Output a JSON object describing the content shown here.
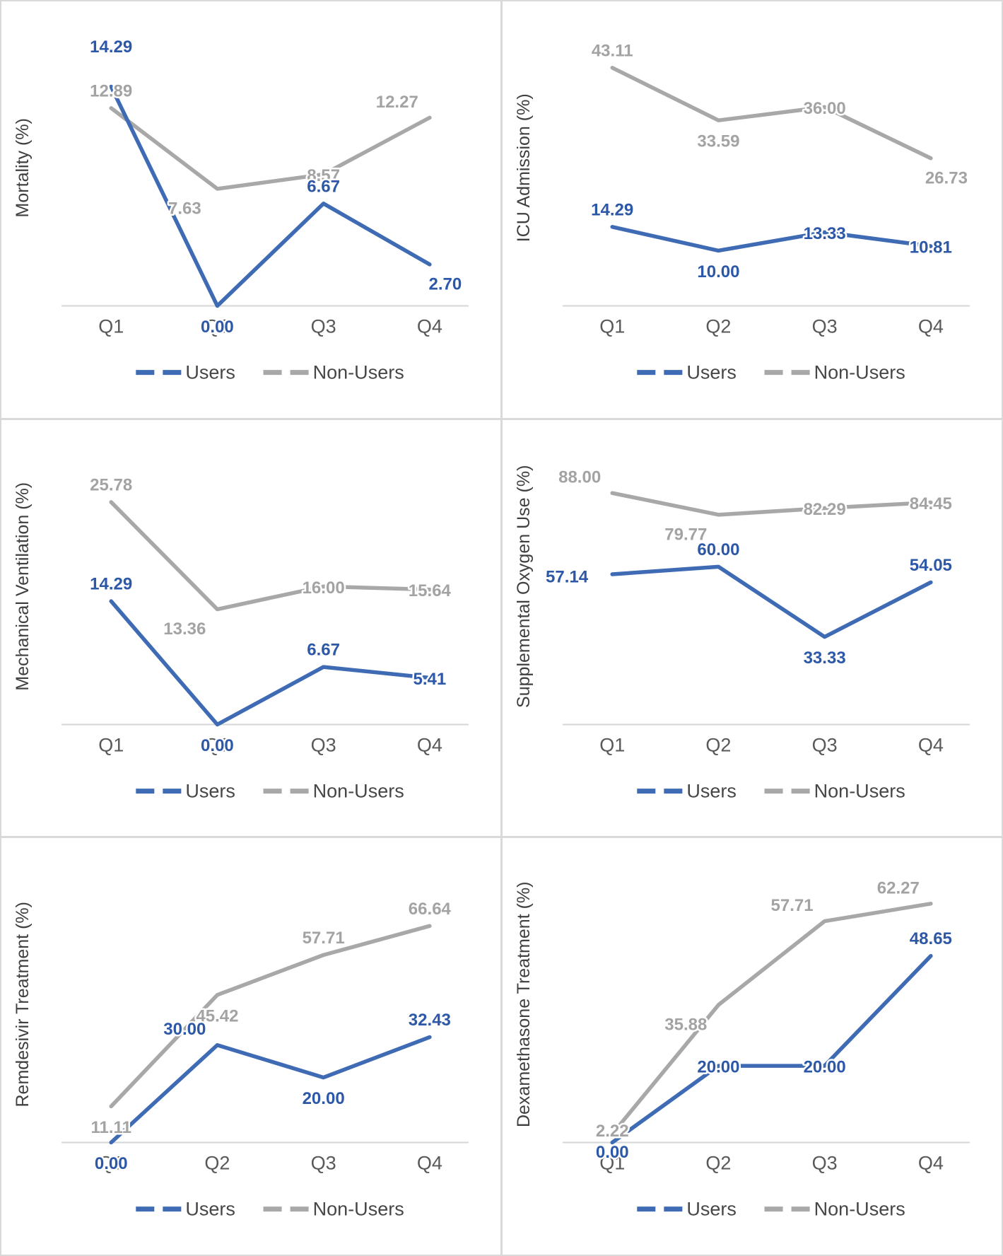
{
  "page": {
    "background": "#ffffff",
    "divider_color": "#d9d9d9"
  },
  "colors": {
    "users_line": "#3e6bb4",
    "users_label": "#2d58a8",
    "nonusers_line": "#a8a8a8",
    "nonusers_label": "#a3a3a3",
    "axis_line": "#d6d6d6",
    "tick_label": "#595959",
    "axis_title": "#404040",
    "legend_text": "#474747"
  },
  "legend": {
    "users_label": "Users",
    "nonusers_label": "Non-Users",
    "position": "bottom"
  },
  "chart_data": [
    {
      "type": "line",
      "ylabel": "Mortality (%)",
      "categories": [
        "Q1",
        "Q2",
        "Q3",
        "Q4"
      ],
      "ylim": [
        0,
        18
      ],
      "grid": false,
      "series": [
        {
          "name": "Non-Users",
          "color_key": "nonusers",
          "values": [
            12.89,
            7.63,
            8.57,
            12.27
          ],
          "label_pos": [
            "a",
            "bl",
            "c",
            "al"
          ]
        },
        {
          "name": "Users",
          "color_key": "users",
          "values": [
            14.29,
            0.0,
            6.67,
            2.7
          ],
          "label_pos": [
            "a2",
            "b",
            "a",
            "br"
          ]
        }
      ]
    },
    {
      "type": "line",
      "ylabel": "ICU Admission (%)",
      "categories": [
        "Q1",
        "Q2",
        "Q3",
        "Q4"
      ],
      "ylim": [
        0,
        50
      ],
      "grid": false,
      "series": [
        {
          "name": "Non-Users",
          "color_key": "nonusers",
          "values": [
            43.11,
            33.59,
            36.0,
            26.73
          ],
          "label_pos": [
            "a",
            "b",
            "c",
            "br"
          ]
        },
        {
          "name": "Users",
          "color_key": "users",
          "values": [
            14.29,
            10.0,
            13.33,
            10.81
          ],
          "label_pos": [
            "a",
            "b",
            "c",
            "c"
          ]
        }
      ]
    },
    {
      "type": "line",
      "ylabel": "Mechanical Ventilation (%)",
      "categories": [
        "Q1",
        "Q2",
        "Q3",
        "Q4"
      ],
      "ylim": [
        0,
        32
      ],
      "grid": false,
      "series": [
        {
          "name": "Non-Users",
          "color_key": "nonusers",
          "values": [
            25.78,
            13.36,
            16.0,
            15.64
          ],
          "label_pos": [
            "a",
            "bl",
            "c",
            "c"
          ]
        },
        {
          "name": "Users",
          "color_key": "users",
          "values": [
            14.29,
            0.0,
            6.67,
            5.41
          ],
          "label_pos": [
            "a",
            "b",
            "a",
            "c"
          ]
        }
      ]
    },
    {
      "type": "line",
      "ylabel": "Supplemental Oxygen Use (%)",
      "categories": [
        "Q1",
        "Q2",
        "Q3",
        "Q4"
      ],
      "ylim": [
        0,
        105
      ],
      "grid": false,
      "series": [
        {
          "name": "Non-Users",
          "color_key": "nonusers",
          "values": [
            88.0,
            79.77,
            82.29,
            84.45
          ],
          "label_pos": [
            "al",
            "bl",
            "c",
            "c"
          ]
        },
        {
          "name": "Users",
          "color_key": "users",
          "values": [
            57.14,
            60.0,
            33.33,
            54.05
          ],
          "label_pos": [
            "l",
            "a",
            "b",
            "a"
          ]
        }
      ]
    },
    {
      "type": "line",
      "ylabel": "Remdesivir Treatment (%)",
      "categories": [
        "Q1",
        "Q2",
        "Q3",
        "Q4"
      ],
      "ylim": [
        0,
        85
      ],
      "grid": false,
      "series": [
        {
          "name": "Non-Users",
          "color_key": "nonusers",
          "values": [
            11.11,
            45.42,
            57.71,
            66.64
          ],
          "label_pos": [
            "b",
            "b",
            "a",
            "a"
          ]
        },
        {
          "name": "Users",
          "color_key": "users",
          "values": [
            0.0,
            30.0,
            20.0,
            32.43
          ],
          "label_pos": [
            "b",
            "al",
            "b",
            "a"
          ]
        }
      ]
    },
    {
      "type": "line",
      "ylabel": "Dexamethasone Treatment (%)",
      "categories": [
        "Q1",
        "Q2",
        "Q3",
        "Q4"
      ],
      "ylim": [
        0,
        72
      ],
      "grid": false,
      "series": [
        {
          "name": "Non-Users",
          "color_key": "nonusers",
          "values": [
            2.22,
            35.88,
            57.71,
            62.27
          ],
          "label_pos": [
            "as",
            "bl",
            "al",
            "al"
          ]
        },
        {
          "name": "Users",
          "color_key": "users",
          "values": [
            0.0,
            20.0,
            20.0,
            48.65
          ],
          "label_pos": [
            "bs",
            "c",
            "c",
            "a"
          ]
        }
      ]
    }
  ]
}
